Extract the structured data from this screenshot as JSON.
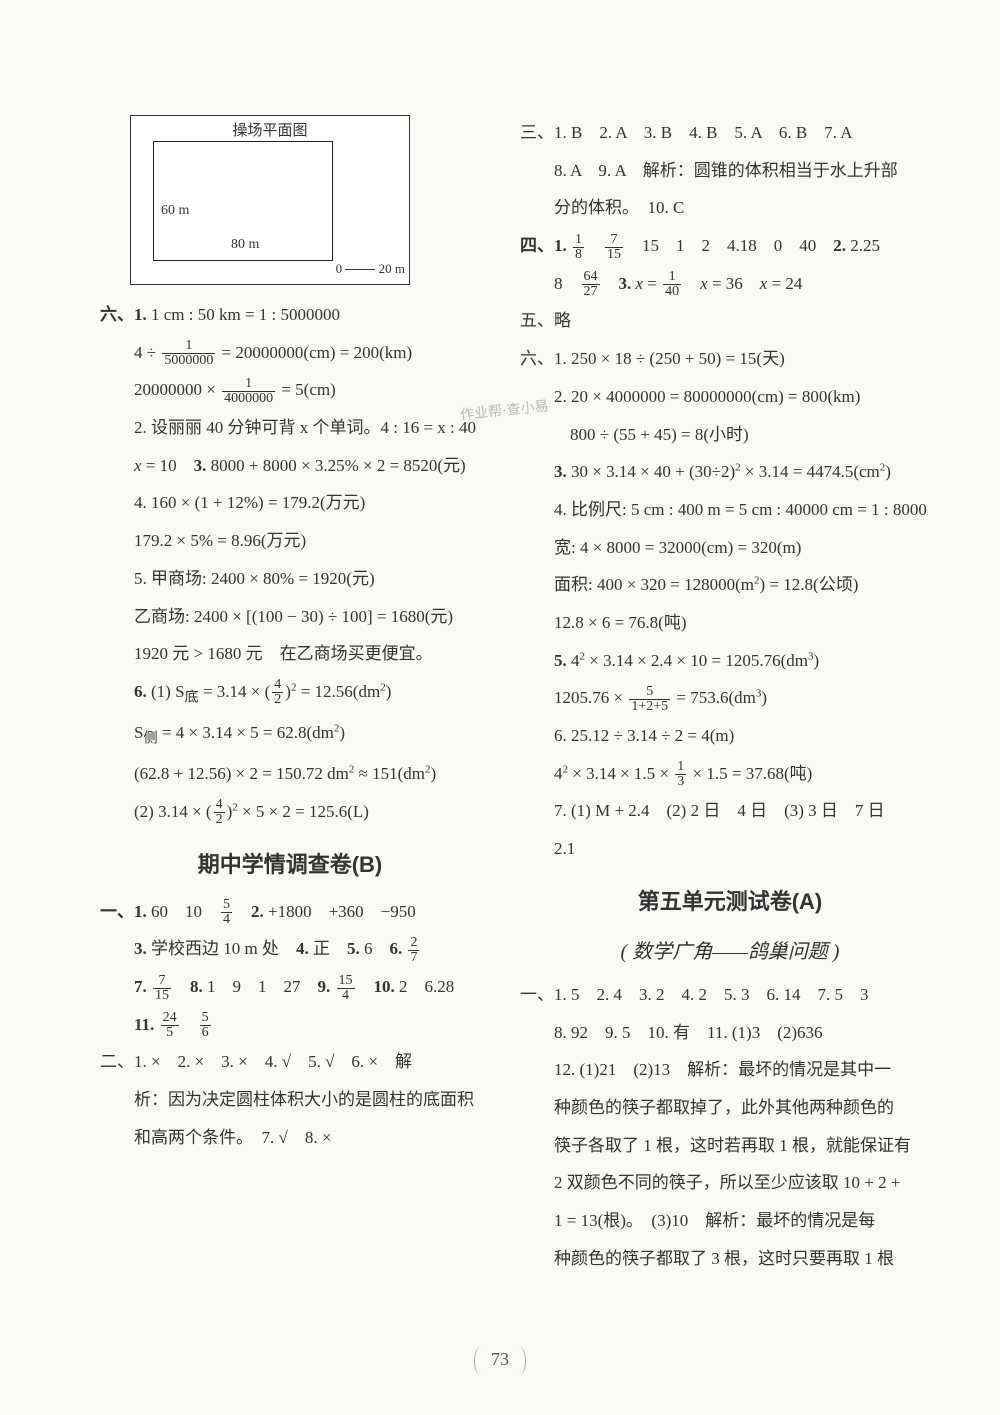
{
  "pageNumber": "73",
  "diagram": {
    "title": "操场平面图",
    "h": "60 m",
    "w": "80 m",
    "scale0": "0",
    "scale20": "20 m"
  },
  "left": {
    "l_six": "六、1. 1 cm : 50 km = 1 : 5000000",
    "l_six_a": "4 ÷ 1/5000000 = 20000000(cm) = 200(km)",
    "l_six_b": "20000000 × 1/4000000 = 5(cm)",
    "l2": "2. 设丽丽 40 分钟可背 x 个单词。4 : 16 = x : 40",
    "l2b": "x = 10　3. 8000 + 8000 × 3.25% × 2 = 8520(元)",
    "l4": "4. 160 × (1 + 12%) = 179.2(万元)",
    "l4b": "179.2 × 5% = 8.96(万元)",
    "l5": "5. 甲商场: 2400 × 80% = 1920(元)",
    "l5b": "乙商场: 2400 × [(100 − 30) ÷ 100] = 1680(元)",
    "l5c": "1920 元 > 1680 元　在乙商场买更便宜。",
    "l6": "6. (1) S底 = 3.14 × (4/2)² = 12.56(dm²)",
    "l6b": "S侧 = 4 × 3.14 × 5 = 62.8(dm²)",
    "l6c": "(62.8 + 12.56) × 2 = 150.72 dm² ≈ 151(dm²)",
    "l6d": "(2) 3.14 × (4/2)² × 5 × 2 = 125.6(L)",
    "midHeading": "期中学情调查卷(B)",
    "b1": "一、1. 60　10　5/4　2. +1800　+360　−950",
    "b3": "3. 学校西边 10 m 处　4. 正　5. 6　6. 2/7",
    "b7": "7. 7/15　8. 1　9　1　27　9. 15/4　10. 2　6.28",
    "b11": "11. 24/5　5/6",
    "b_er": "二、1. ×　2. ×　3. ×　4. √　5. √　6. ×　解",
    "b_er2": "析：因为决定圆柱体积大小的是圆柱的底面积",
    "b_er3": "和高两个条件。　7. √　8. ×"
  },
  "right": {
    "r3": "三、1. B　2. A　3. B　4. B　5. A　6. B　7. A",
    "r3b": "8. A　9. A　解析：圆锥的体积相当于水上升部",
    "r3c": "分的体积。　10. C",
    "r4": "四、1. 1/8　7/15　15　1　2　4.18　0　40　2. 2.25",
    "r4b": "8　64/27　3. x = 1/40　x = 36　x = 24",
    "r5": "五、略",
    "r6a": "六、1. 250 × 18 ÷ (250 + 50) = 15(天)",
    "r6b": "2. 20 × 4000000 = 80000000(cm) = 800(km)",
    "r6c": "800 ÷ (55 + 45) = 8(小时)",
    "r6d": "3. 30 × 3.14 × 40 + (30÷2)² × 3.14 = 4474.5(cm²)",
    "r6e": "4. 比例尺: 5 cm : 400 m = 5 cm : 40000 cm = 1 : 8000",
    "r6f": "宽: 4 × 8000 = 32000(cm) = 320(m)",
    "r6g": "面积: 400 × 320 = 128000(m²) = 12.8(公顷)",
    "r6h": "12.8 × 6 = 76.8(吨)",
    "r6i": "5. 4² × 3.14 × 2.4 × 10 = 1205.76(dm³)",
    "r6j": "1205.76 × 5/(1+2+5) = 753.6(dm³)",
    "r6k": "6. 25.12 ÷ 3.14 ÷ 2 = 4(m)",
    "r6l": "4² × 3.14 × 1.5 × 1/3 × 1.5 = 37.68(吨)",
    "r6m": "7. (1) M + 2.4　(2) 2 日　4 日　(3) 3 日　7 日",
    "r6n": "2.1",
    "unit5Heading": "第五单元测试卷(A)",
    "unit5Sub": "( 数学广角——鸽巢问题 )",
    "u1": "一、1. 5　2. 4　3. 2　4. 2　5. 3　6. 14　7. 5　3",
    "u1b": "8. 92　9. 5　10. 有　11. (1)3　(2)636",
    "u12a": "12. (1)21　(2)13　解析：最坏的情况是其中一",
    "u12b": "种颜色的筷子都取掉了，此外其他两种颜色的",
    "u12c": "筷子各取了 1 根，这时若再取 1 根，就能保证有",
    "u12d": "2 双颜色不同的筷子，所以至少应该取 10 + 2 +",
    "u12e": "1 = 13(根)。　(3)10　解析：最坏的情况是每",
    "u12f": "种颜色的筷子都取了 3 根，这时只要再取 1 根"
  },
  "watermark": "作业帮·查小易"
}
